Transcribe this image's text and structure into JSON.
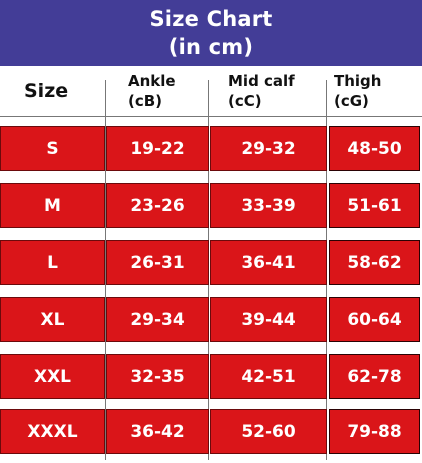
{
  "title": {
    "line1": "Size Chart",
    "line2": "(in cm)"
  },
  "columns": {
    "size": "Size",
    "ankle": {
      "label": "Ankle",
      "unit": "(cB)"
    },
    "mid_calf": {
      "label": "Mid calf",
      "unit": "(cC)"
    },
    "thigh": {
      "label": "Thigh",
      "unit": "(cG)"
    }
  },
  "rows": [
    {
      "size": "S",
      "ankle": "19-22",
      "mid_calf": "29-32",
      "thigh": "48-50"
    },
    {
      "size": "M",
      "ankle": "23-26",
      "mid_calf": "33-39",
      "thigh": "51-61"
    },
    {
      "size": "L",
      "ankle": "26-31",
      "mid_calf": "36-41",
      "thigh": "58-62"
    },
    {
      "size": "XL",
      "ankle": "29-34",
      "mid_calf": "39-44",
      "thigh": "60-64"
    },
    {
      "size": "XXL",
      "ankle": "32-35",
      "mid_calf": "42-51",
      "thigh": "62-78"
    },
    {
      "size": "XXXL",
      "ankle": "36-42",
      "mid_calf": "52-60",
      "thigh": "79-88"
    }
  ],
  "colors": {
    "banner": "#433d97",
    "row_fill": "#da1519",
    "text_on_red": "#ffffff"
  }
}
